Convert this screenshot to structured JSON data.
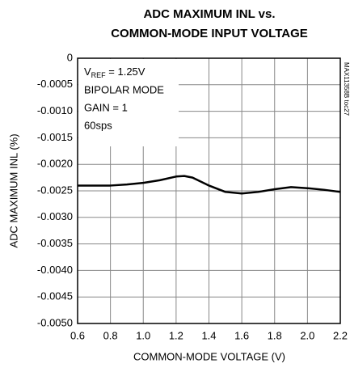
{
  "chart_data": {
    "type": "line",
    "title": [
      "ADC MAXIMUM INL vs.",
      "COMMON-MODE INPUT VOLTAGE"
    ],
    "xlabel": "COMMON-MODE VOLTAGE (V)",
    "ylabel": "ADC MAXIMUM INL (%)",
    "figure_id": "MAX11358B toc27",
    "annotation": [
      {
        "main": "V",
        "sub": "REF",
        "tail": " = 1.25V"
      },
      "BIPOLAR MODE",
      "GAIN = 1",
      "60sps"
    ],
    "x": [
      0.6,
      0.7,
      0.8,
      0.9,
      1.0,
      1.1,
      1.2,
      1.25,
      1.3,
      1.4,
      1.5,
      1.6,
      1.7,
      1.8,
      1.9,
      2.0,
      2.1,
      2.2
    ],
    "series": [
      {
        "name": "INL",
        "color": "#000000",
        "values": [
          -0.0024,
          -0.0024,
          -0.0024,
          -0.00238,
          -0.00235,
          -0.0023,
          -0.00223,
          -0.00222,
          -0.00225,
          -0.0024,
          -0.00252,
          -0.00255,
          -0.00252,
          -0.00247,
          -0.00243,
          -0.00245,
          -0.00248,
          -0.00252
        ]
      }
    ],
    "xlim": [
      0.6,
      2.2
    ],
    "xticks": [
      0.6,
      0.8,
      {
        "value": 1.0,
        "label": "1.0"
      },
      1.2,
      1.4,
      1.6,
      1.8,
      {
        "value": 2.0,
        "label": "2.0"
      },
      2.2
    ],
    "ylim": [
      -0.005,
      0
    ],
    "yticks": [
      0,
      -0.0005,
      {
        "value": -0.001,
        "label": "-0.0010"
      },
      {
        "value": -0.0015,
        "label": "-0.0015"
      },
      {
        "value": -0.002,
        "label": "-0.0020"
      },
      {
        "value": -0.0025,
        "label": "-0.0025"
      },
      {
        "value": -0.003,
        "label": "-0.0030"
      },
      {
        "value": -0.0035,
        "label": "-0.0035"
      },
      {
        "value": -0.004,
        "label": "-0.0040"
      },
      {
        "value": -0.0045,
        "label": "-0.0045"
      },
      {
        "value": -0.005,
        "label": "-0.0050"
      }
    ],
    "grid": true
  }
}
